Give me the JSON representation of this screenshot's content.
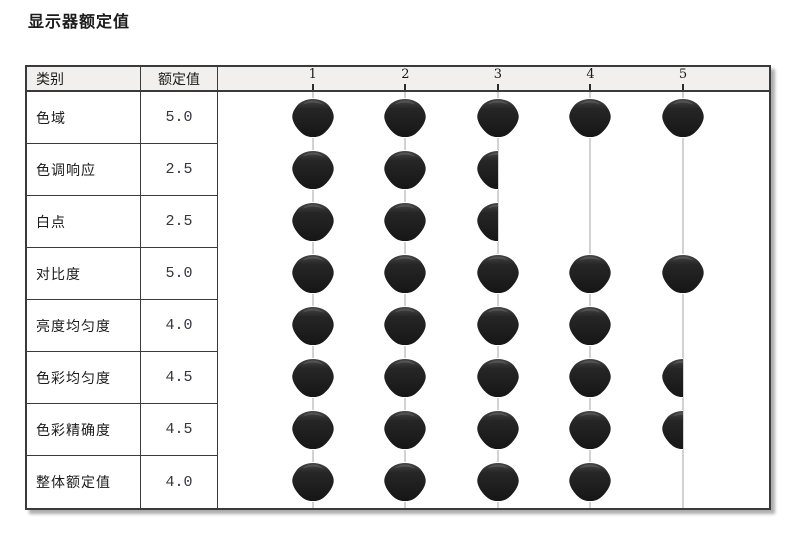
{
  "title": "显示器额定值",
  "table": {
    "col_category": "类别",
    "col_rating": "额定值",
    "scale_labels": [
      "1",
      "2",
      "3",
      "4",
      "5"
    ]
  },
  "colors": {
    "marker": "#1d1d1d",
    "marker_highlight": "#454545",
    "guide_line": "#d2d2d2",
    "header_bg": "#f1f0ee",
    "border": "#3a3a3a",
    "value_text": "#33363c"
  },
  "chart_data": {
    "type": "table",
    "title": "显示器额定值",
    "columns": [
      "类别",
      "额定值"
    ],
    "scale": [
      1,
      2,
      3,
      4,
      5
    ],
    "scale_range": [
      0,
      5
    ],
    "marker_style": "dark-blob, half blob for .5 fractions",
    "legend_position": "none",
    "grid": "vertical guide lines at each scale value",
    "categories": [
      "色域",
      "色调响应",
      "白点",
      "对比度",
      "亮度均匀度",
      "色彩均匀度",
      "色彩精确度",
      "整体额定值"
    ],
    "values": [
      5.0,
      2.5,
      2.5,
      5.0,
      4.0,
      4.5,
      4.5,
      4.0
    ],
    "value_labels": [
      "5.0",
      "2.5",
      "2.5",
      "5.0",
      "4.0",
      "4.5",
      "4.5",
      "4.0"
    ]
  }
}
